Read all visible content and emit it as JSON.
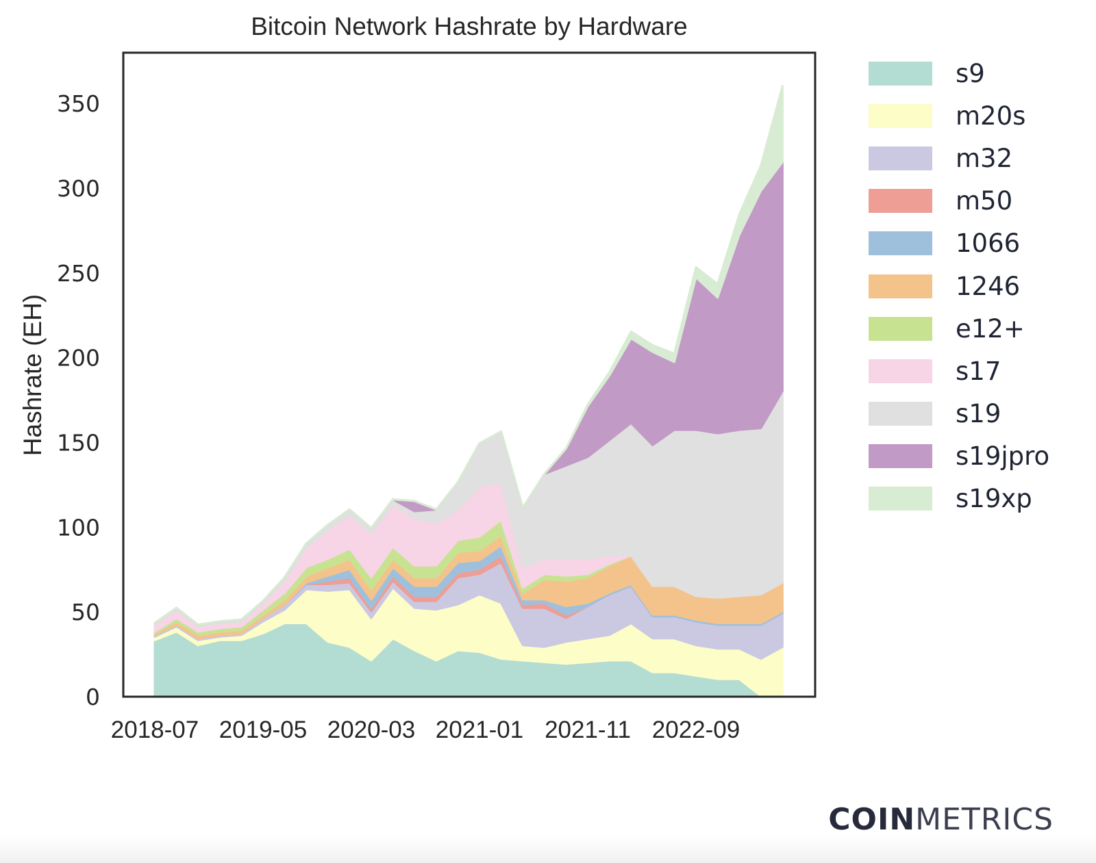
{
  "chart_data": {
    "type": "area",
    "stacked": true,
    "title": "Bitcoin Network Hashrate by Hardware",
    "xlabel": "",
    "ylabel": "Hashrate (EH)",
    "ylim": [
      0,
      380
    ],
    "yticks": [
      0,
      50,
      100,
      150,
      200,
      250,
      300,
      350
    ],
    "xticks": [
      "2018-07",
      "2019-05",
      "2020-03",
      "2021-01",
      "2021-11",
      "2022-09"
    ],
    "legend_position": "right-outside",
    "grid": false,
    "x": [
      "2018-07",
      "2018-09",
      "2018-11",
      "2019-01",
      "2019-03",
      "2019-05",
      "2019-07",
      "2019-09",
      "2019-11",
      "2020-01",
      "2020-03",
      "2020-05",
      "2020-07",
      "2020-09",
      "2020-11",
      "2021-01",
      "2021-03",
      "2021-05",
      "2021-07",
      "2021-09",
      "2021-11",
      "2022-01",
      "2022-03",
      "2022-05",
      "2022-07",
      "2022-09",
      "2022-11",
      "2023-01",
      "2023-03",
      "2023-05"
    ],
    "series": [
      {
        "name": "s9",
        "color": "#b3dcd3",
        "values": [
          33,
          38,
          30,
          33,
          33,
          37,
          43,
          43,
          32,
          29,
          21,
          34,
          27,
          21,
          27,
          26,
          22,
          21,
          20,
          19,
          20,
          21,
          21,
          14,
          14,
          12,
          10,
          10,
          0,
          0
        ]
      },
      {
        "name": "m20s",
        "color": "#fdfdc8",
        "values": [
          2,
          3,
          3,
          2,
          3,
          7,
          8,
          20,
          30,
          34,
          25,
          30,
          25,
          30,
          27,
          34,
          33,
          9,
          9,
          13,
          14,
          15,
          22,
          20,
          20,
          18,
          18,
          18,
          22,
          29
        ]
      },
      {
        "name": "m32",
        "color": "#cbc9e2",
        "values": [
          1,
          1,
          1,
          1,
          1,
          2,
          3,
          3,
          4,
          4,
          4,
          4,
          4,
          5,
          16,
          12,
          24,
          22,
          23,
          14,
          19,
          24,
          22,
          13,
          13,
          14,
          14,
          14,
          20,
          20
        ]
      },
      {
        "name": "m50",
        "color": "#ee9e94",
        "values": [
          0,
          0,
          0,
          0,
          0,
          0,
          0,
          0,
          2,
          3,
          2,
          3,
          3,
          3,
          3,
          3,
          4,
          2,
          3,
          2,
          0,
          0,
          0,
          0,
          0,
          0,
          0,
          0,
          0,
          0
        ]
      },
      {
        "name": "1066",
        "color": "#9fc0dc",
        "values": [
          0,
          0,
          0,
          0,
          0,
          0,
          0,
          1,
          3,
          5,
          5,
          5,
          6,
          6,
          6,
          5,
          6,
          3,
          2,
          5,
          2,
          1,
          1,
          1,
          1,
          1,
          1,
          1,
          1,
          1
        ]
      },
      {
        "name": "1246",
        "color": "#f4c38b",
        "values": [
          1,
          2,
          2,
          2,
          2,
          2,
          3,
          4,
          5,
          6,
          6,
          5,
          5,
          5,
          6,
          6,
          6,
          4,
          12,
          15,
          15,
          16,
          17,
          17,
          17,
          14,
          15,
          16,
          17,
          17
        ]
      },
      {
        "name": "e12+",
        "color": "#c7e392",
        "values": [
          1,
          2,
          2,
          2,
          2,
          3,
          4,
          5,
          5,
          6,
          7,
          7,
          7,
          7,
          7,
          8,
          9,
          3,
          3,
          3,
          2,
          1,
          0,
          0,
          0,
          0,
          0,
          0,
          0,
          0
        ]
      },
      {
        "name": "s17",
        "color": "#f7d4e6",
        "values": [
          4,
          5,
          3,
          3,
          3,
          4,
          7,
          12,
          17,
          20,
          26,
          25,
          28,
          25,
          18,
          30,
          22,
          12,
          9,
          10,
          9,
          5,
          0,
          0,
          0,
          0,
          0,
          0,
          0,
          0
        ]
      },
      {
        "name": "s19",
        "color": "#e0e0e0",
        "values": [
          1,
          1,
          1,
          1,
          1,
          1,
          2,
          2,
          3,
          3,
          3,
          3,
          4,
          8,
          16,
          25,
          30,
          35,
          50,
          55,
          60,
          68,
          78,
          83,
          92,
          98,
          97,
          98,
          98,
          113
        ]
      },
      {
        "name": "s19jpro",
        "color": "#c19ac6",
        "values": [
          0,
          0,
          0,
          0,
          0,
          0,
          0,
          0,
          0,
          0,
          0,
          0,
          6,
          0,
          0,
          0,
          0,
          0,
          0,
          10,
          30,
          38,
          50,
          55,
          40,
          90,
          80,
          115,
          140,
          135
        ]
      },
      {
        "name": "s19xp",
        "color": "#d8ecd3",
        "values": [
          0,
          0,
          0,
          0,
          0,
          0,
          0,
          0,
          0,
          0,
          0,
          0,
          0,
          0,
          0,
          0,
          0,
          0,
          0,
          0,
          1,
          2,
          4,
          4,
          5,
          6,
          8,
          12,
          15,
          45
        ]
      }
    ]
  },
  "legend": {
    "items": [
      {
        "label": "s9",
        "color": "#b3dcd3"
      },
      {
        "label": "m20s",
        "color": "#fdfdc8"
      },
      {
        "label": "m32",
        "color": "#cbc9e2"
      },
      {
        "label": "m50",
        "color": "#ee9e94"
      },
      {
        "label": "1066",
        "color": "#9fc0dc"
      },
      {
        "label": "1246",
        "color": "#f4c38b"
      },
      {
        "label": "e12+",
        "color": "#c7e392"
      },
      {
        "label": "s17",
        "color": "#f7d4e6"
      },
      {
        "label": "s19",
        "color": "#e0e0e0"
      },
      {
        "label": "s19jpro",
        "color": "#c19ac6"
      },
      {
        "label": "s19xp",
        "color": "#d8ecd3"
      }
    ]
  },
  "brand": {
    "bold": "COIN",
    "light": "METRICS"
  }
}
